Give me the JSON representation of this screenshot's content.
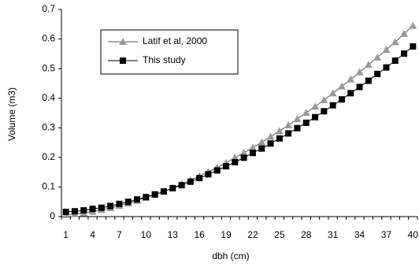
{
  "chart_data": {
    "type": "line",
    "x_label": "dbh (cm)",
    "y_label": "Volume (m3)",
    "categories": [
      1,
      null,
      null,
      4,
      null,
      null,
      7,
      null,
      null,
      10,
      null,
      null,
      13,
      null,
      null,
      16,
      null,
      null,
      19,
      null,
      null,
      22,
      null,
      null,
      25,
      null,
      null,
      28,
      null,
      null,
      31,
      null,
      null,
      34,
      null,
      null,
      37,
      null,
      null,
      40
    ],
    "series": [
      {
        "name": "Latif et al, 2000",
        "color": "#999999",
        "marker": "triangle",
        "values": [
          0.006,
          0.009,
          0.012,
          0.017,
          0.023,
          0.029,
          0.037,
          0.045,
          0.054,
          0.064,
          0.074,
          0.085,
          0.097,
          0.11,
          0.123,
          0.137,
          0.151,
          0.166,
          0.182,
          0.199,
          0.216,
          0.233,
          0.251,
          0.27,
          0.289,
          0.309,
          0.33,
          0.351,
          0.372,
          0.394,
          0.417,
          0.44,
          0.464,
          0.488,
          0.513,
          0.538,
          0.564,
          0.59,
          0.618,
          0.645
        ]
      },
      {
        "name": "This study",
        "color": "#000000",
        "marker": "square",
        "values": [
          0.016,
          0.018,
          0.021,
          0.026,
          0.03,
          0.036,
          0.043,
          0.05,
          0.058,
          0.066,
          0.075,
          0.085,
          0.096,
          0.106,
          0.118,
          0.13,
          0.143,
          0.156,
          0.17,
          0.184,
          0.199,
          0.215,
          0.23,
          0.247,
          0.264,
          0.281,
          0.299,
          0.317,
          0.336,
          0.356,
          0.376,
          0.396,
          0.417,
          0.438,
          0.459,
          0.482,
          0.504,
          0.527,
          0.551,
          0.575
        ]
      }
    ],
    "ylim": [
      0,
      0.7
    ],
    "yticks": [
      0,
      0.1,
      0.2,
      0.3,
      0.4,
      0.5,
      0.6,
      0.7
    ],
    "grid": false
  }
}
